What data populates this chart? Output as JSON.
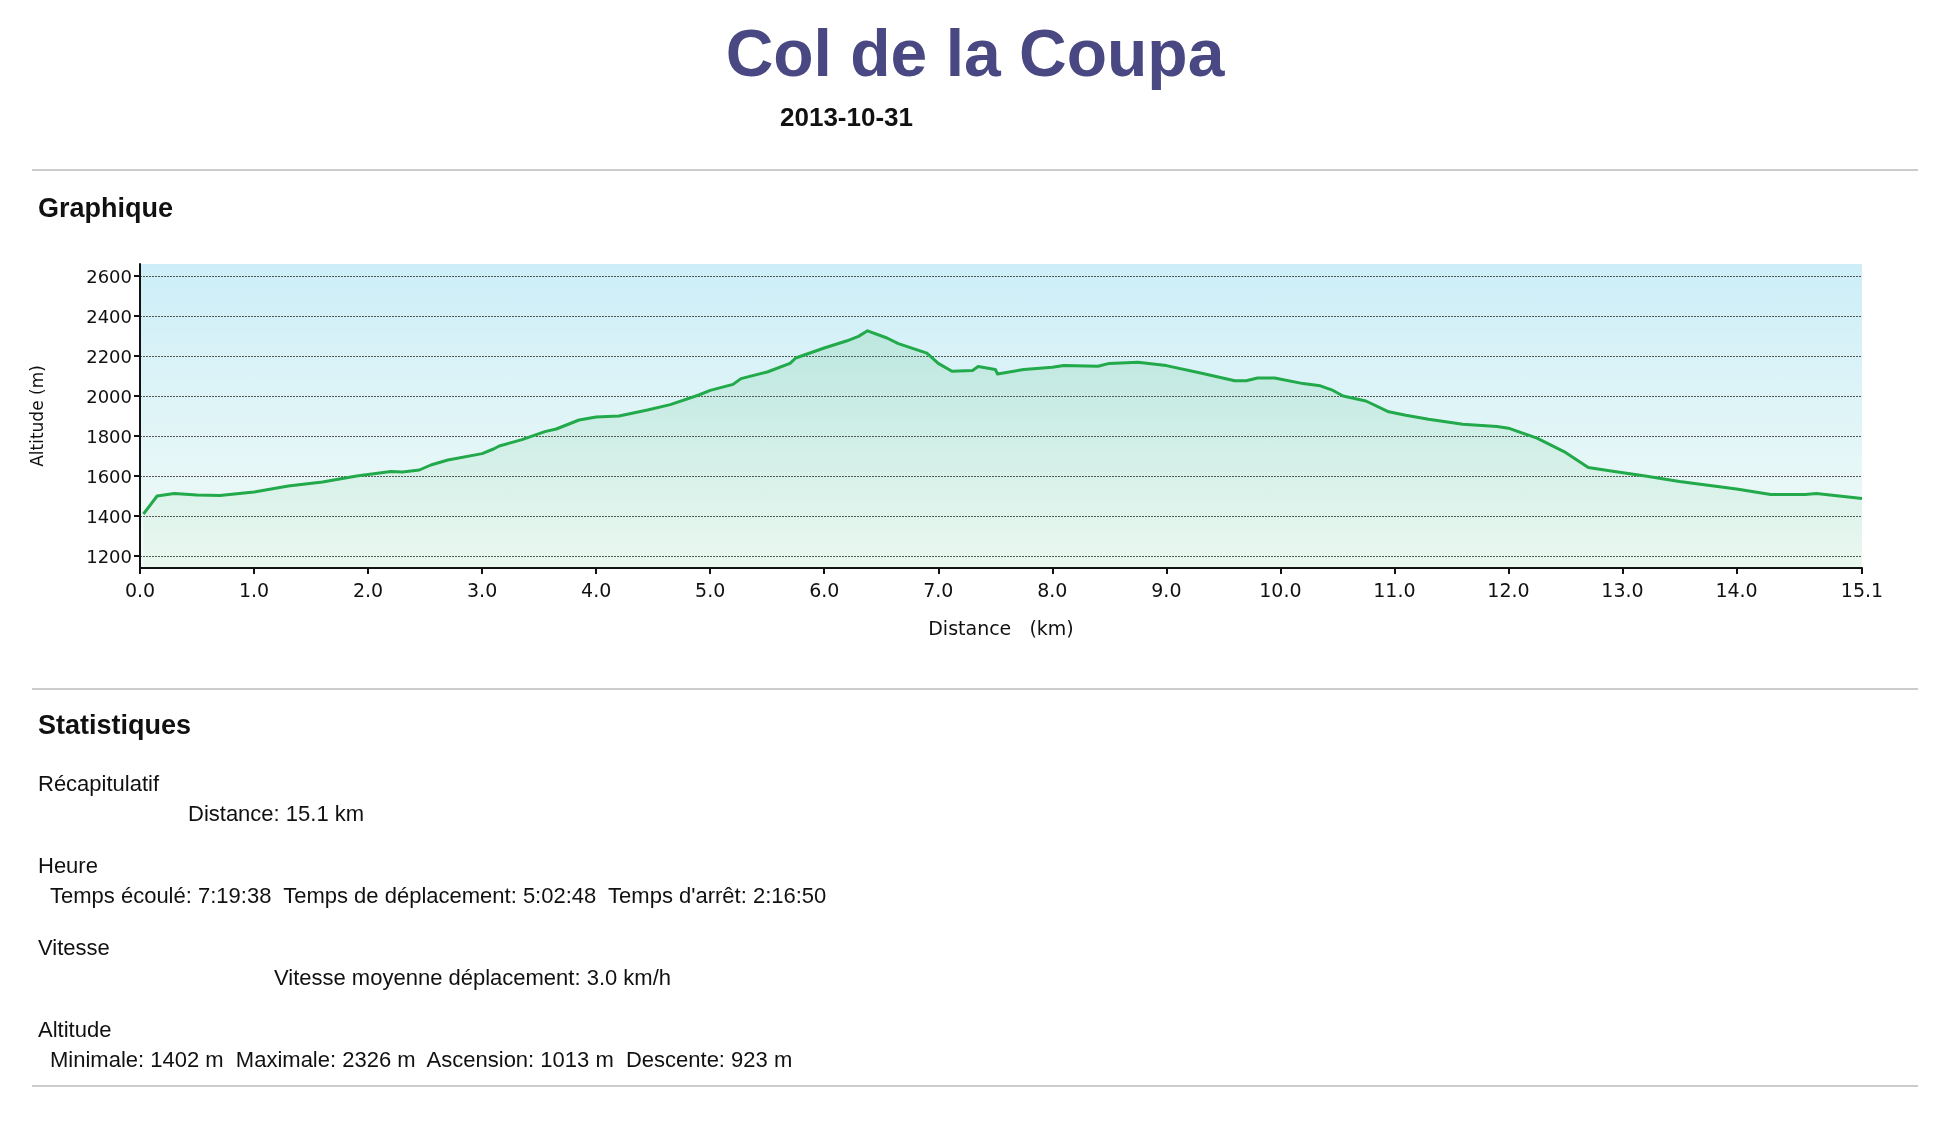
{
  "chart_data": {
    "type": "area",
    "title": "Col de la Coupa",
    "subtitle": "2013-10-31",
    "xlabel": "Distance   (km)",
    "ylabel": "Altitude (m)",
    "x": [
      0.03,
      0.15,
      0.3,
      0.5,
      0.7,
      1.0,
      1.3,
      1.6,
      1.9,
      2.2,
      2.3,
      2.45,
      2.55,
      2.7,
      3.0,
      3.1,
      3.15,
      3.35,
      3.55,
      3.65,
      3.85,
      4.0,
      4.2,
      4.45,
      4.65,
      4.9,
      5.0,
      5.2,
      5.27,
      5.5,
      5.7,
      5.75,
      6.0,
      6.2,
      6.3,
      6.38,
      6.55,
      6.65,
      6.9,
      7.0,
      7.12,
      7.3,
      7.35,
      7.5,
      7.52,
      7.75,
      8.0,
      8.1,
      8.4,
      8.5,
      8.75,
      9.0,
      9.3,
      9.6,
      9.7,
      9.8,
      9.95,
      10.2,
      10.35,
      10.45,
      10.55,
      10.75,
      10.95,
      11.1,
      11.3,
      11.6,
      11.9,
      12.0,
      12.25,
      12.5,
      12.7,
      12.9,
      13.2,
      13.5,
      13.8,
      14.0,
      14.3,
      14.6,
      14.7,
      15.1
    ],
    "series": [
      {
        "color": "#22a94a",
        "values": [
          1410,
          1500,
          1513,
          1505,
          1502,
          1520,
          1550,
          1570,
          1600,
          1622,
          1620,
          1630,
          1655,
          1680,
          1712,
          1735,
          1750,
          1782,
          1822,
          1835,
          1880,
          1895,
          1900,
          1930,
          1957,
          2005,
          2028,
          2058,
          2087,
          2120,
          2163,
          2190,
          2240,
          2276,
          2298,
          2326,
          2290,
          2262,
          2214,
          2163,
          2124,
          2127,
          2147,
          2133,
          2110,
          2133,
          2144,
          2152,
          2149,
          2163,
          2169,
          2152,
          2115,
          2076,
          2076,
          2090,
          2090,
          2062,
          2051,
          2031,
          2000,
          1975,
          1921,
          1904,
          1884,
          1859,
          1848,
          1839,
          1789,
          1718,
          1642,
          1625,
          1600,
          1572,
          1550,
          1535,
          1507,
          1507,
          1513,
          1487
        ]
      }
    ],
    "xlim": [
      0,
      15.1
    ],
    "xticks": [
      {
        "value": 0,
        "label": "0.0"
      },
      {
        "value": 1,
        "label": "1.0"
      },
      {
        "value": 2,
        "label": "2.0"
      },
      {
        "value": 3,
        "label": "3.0"
      },
      {
        "value": 4,
        "label": "4.0"
      },
      {
        "value": 5,
        "label": "5.0"
      },
      {
        "value": 6,
        "label": "6.0"
      },
      {
        "value": 7,
        "label": "7.0"
      },
      {
        "value": 8,
        "label": "8.0"
      },
      {
        "value": 9,
        "label": "9.0"
      },
      {
        "value": 10,
        "label": "10.0"
      },
      {
        "value": 11,
        "label": "11.0"
      },
      {
        "value": 12,
        "label": "12.0"
      },
      {
        "value": 13,
        "label": "13.0"
      },
      {
        "value": 14,
        "label": "14.0"
      },
      15.1
    ],
    "ylim": [
      1140,
      2660
    ],
    "yticks": [
      1200,
      1400,
      1600,
      1800,
      2000,
      2200,
      2400,
      2600
    ],
    "grid": "y",
    "annotations": [
      "Graphique",
      "Statistiques",
      "Récapitulatif",
      "Distance: 15.1 km",
      "Heure",
      "Temps écoulé: 7:19:38  Temps de déplacement: 5:02:48  Temps d'arrêt: 2:16:50",
      "Vitesse",
      "Vitesse moyenne déplacement: 3.0 km/h",
      "Altitude",
      "Minimale: 1402 m  Maximale: 2326 m  Ascension: 1013 m  Descente: 923 m"
    ]
  }
}
